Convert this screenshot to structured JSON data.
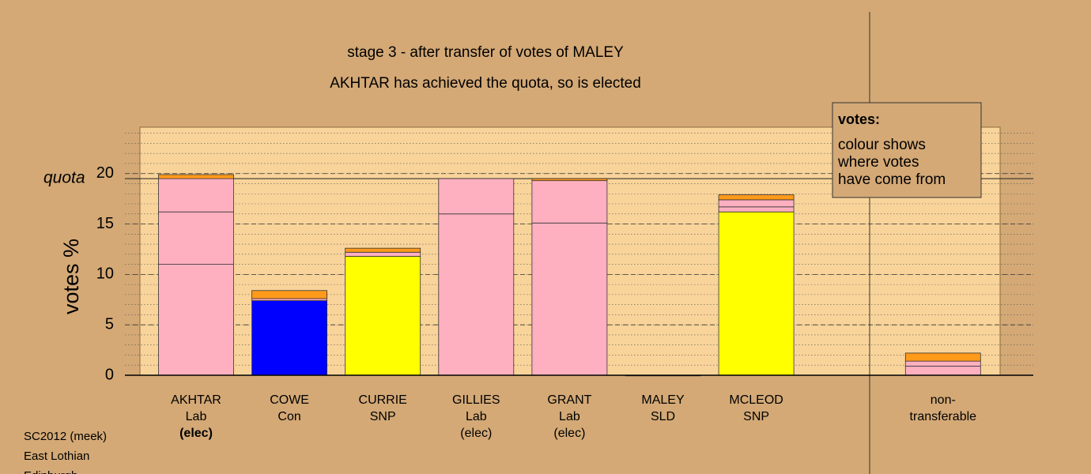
{
  "chart_data": {
    "type": "stacked_bar",
    "title": "stage 3 - after transfer of votes of MALEY",
    "subtitle": "AKHTAR has achieved the quota, so is elected",
    "ylabel": "votes %",
    "quota": 19.5,
    "quota_label": "quota",
    "ylim": [
      0,
      24.6
    ],
    "yticks": [
      0,
      5,
      10,
      15,
      20
    ],
    "minor_tick_step": 1,
    "grid": true,
    "categories": [
      {
        "lines": [
          "AKHTAR",
          "Lab",
          "(elec)"
        ],
        "bold": [
          false,
          false,
          true
        ]
      },
      {
        "lines": [
          "COWE",
          "Con"
        ],
        "bold": [
          false,
          false
        ]
      },
      {
        "lines": [
          "CURRIE",
          "SNP"
        ],
        "bold": [
          false,
          false
        ]
      },
      {
        "lines": [
          "GILLIES",
          "Lab",
          "(elec)"
        ],
        "bold": [
          false,
          false,
          false
        ]
      },
      {
        "lines": [
          "GRANT",
          "Lab",
          "(elec)"
        ],
        "bold": [
          false,
          false,
          false
        ]
      },
      {
        "lines": [
          "MALEY",
          "SLD"
        ],
        "bold": [
          false,
          false
        ]
      },
      {
        "lines": [
          "MCLEOD",
          "SNP"
        ],
        "bold": [
          false,
          false
        ]
      },
      null,
      {
        "lines": [
          "non-",
          "transferable"
        ],
        "bold": [
          false,
          false
        ]
      }
    ],
    "stacks": [
      [
        {
          "value": 11.0,
          "color": "#ffb0c0"
        },
        {
          "value": 5.2,
          "color": "#ffb0c0"
        },
        {
          "value": 3.3,
          "color": "#ffb0c0"
        },
        {
          "value": 0.4,
          "color": "#ff9a1a"
        }
      ],
      [
        {
          "value": 7.4,
          "color": "#0000ff"
        },
        {
          "value": 0.2,
          "color": "#ffb0c0"
        },
        {
          "value": 0.8,
          "color": "#ff9a1a"
        }
      ],
      [
        {
          "value": 11.8,
          "color": "#ffff00"
        },
        {
          "value": 0.4,
          "color": "#ffb0c0"
        },
        {
          "value": 0.4,
          "color": "#ff9a1a"
        }
      ],
      [
        {
          "value": 16.0,
          "color": "#ffb0c0"
        },
        {
          "value": 3.5,
          "color": "#ffb0c0"
        }
      ],
      [
        {
          "value": 15.1,
          "color": "#ffb0c0"
        },
        {
          "value": 4.2,
          "color": "#ffb0c0"
        },
        {
          "value": 0.2,
          "color": "#ff9a1a"
        }
      ],
      [
        {
          "value": 0,
          "color": "#ffb0c0"
        }
      ],
      [
        {
          "value": 16.2,
          "color": "#ffff00"
        },
        {
          "value": 0.5,
          "color": "#ffb0c0"
        },
        {
          "value": 0.7,
          "color": "#ffb0c0"
        },
        {
          "value": 0.5,
          "color": "#ff9a1a"
        }
      ],
      [],
      [
        {
          "value": 0.9,
          "color": "#ffb0c0"
        },
        {
          "value": 0.5,
          "color": "#ffb0c0"
        },
        {
          "value": 0.8,
          "color": "#ff9a1a"
        }
      ]
    ],
    "legend": {
      "title": "votes:",
      "lines": [
        "colour shows",
        "where votes",
        "have come from"
      ]
    },
    "footer": [
      "SC2012 (meek)",
      "East Lothian",
      "Edinburgh"
    ]
  }
}
